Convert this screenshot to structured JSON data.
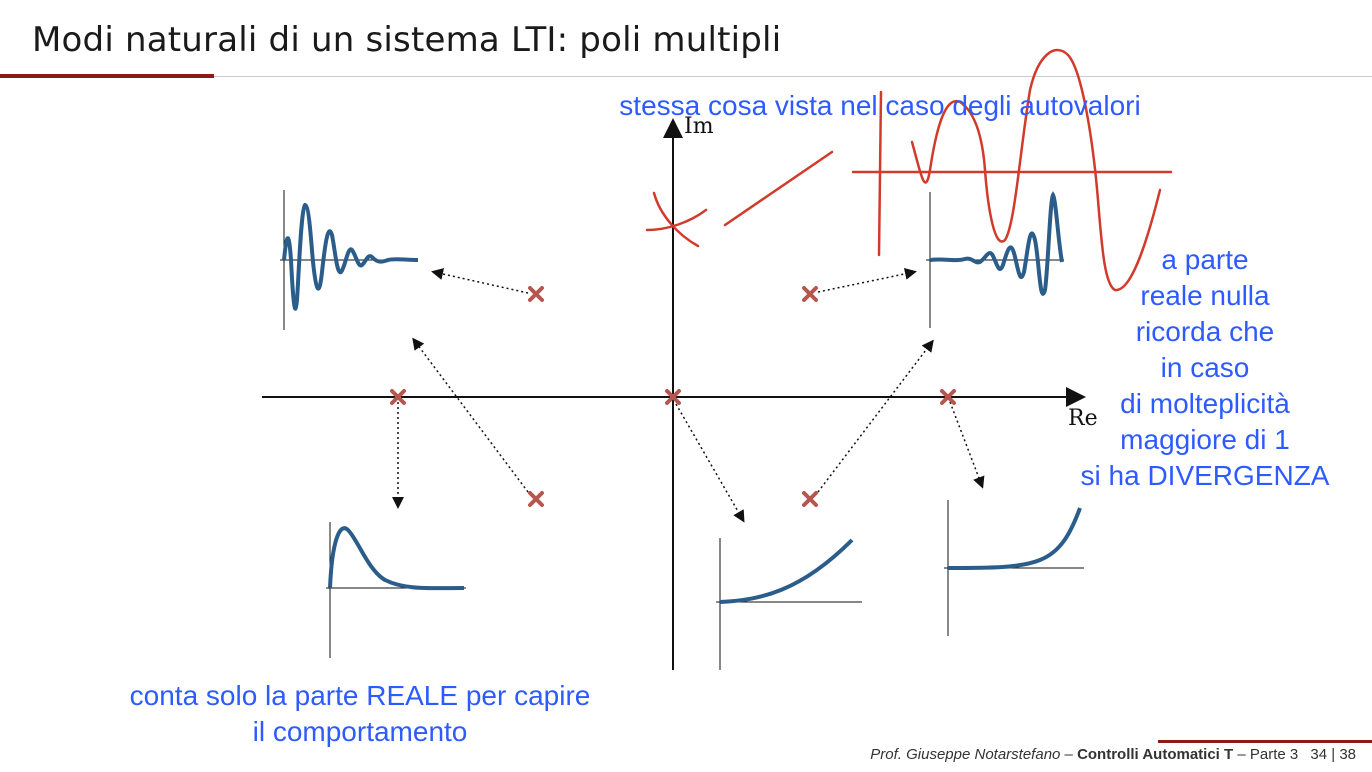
{
  "slide": {
    "title": "Modi naturali di un sistema LTI: poli multipli"
  },
  "plane": {
    "x_label": "Re",
    "y_label": "Im"
  },
  "notes": {
    "top": "stessa cosa vista nel caso degli autovalori",
    "right_lines": [
      "a parte",
      "reale nulla",
      "ricorda che",
      "in caso",
      "di molteplicità",
      "maggiore di 1",
      "si ha DIVERGENZA"
    ],
    "bottom_lines": [
      "conta solo la parte REALE per capire",
      "il comportamento"
    ]
  },
  "footer": {
    "author": "Prof. Giuseppe Notarstefano",
    "separator": " – ",
    "course": "Controlli Automatici T",
    "part": " – Parte 3",
    "page": "34",
    "total": "38"
  },
  "colors": {
    "pole": "#b5574f",
    "curve": "#2b5d8a",
    "annotation": "#2e5bff",
    "ink": "#d13b2b",
    "accent": "#8b1a1a"
  }
}
